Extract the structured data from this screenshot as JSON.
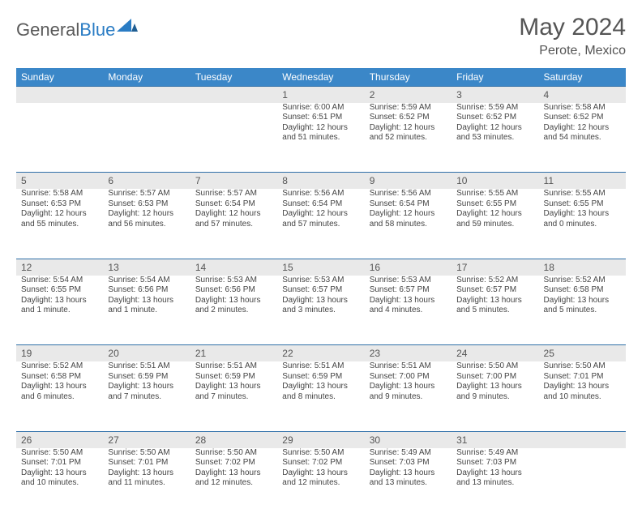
{
  "brand": {
    "word1": "General",
    "word2": "Blue"
  },
  "title": {
    "month": "May 2024",
    "location": "Perote, Mexico"
  },
  "colors": {
    "header_bg": "#3b87c8",
    "header_text": "#ffffff",
    "rule": "#2f6fa8",
    "daynum_bg": "#e9e9e9",
    "body_text": "#444444",
    "title_text": "#555555",
    "logo_gray": "#5a5a5a",
    "logo_blue": "#2a7cc4"
  },
  "weekdays": [
    "Sunday",
    "Monday",
    "Tuesday",
    "Wednesday",
    "Thursday",
    "Friday",
    "Saturday"
  ],
  "weeks": [
    [
      null,
      null,
      null,
      {
        "n": "1",
        "sr": "Sunrise: 6:00 AM",
        "ss": "Sunset: 6:51 PM",
        "d1": "Daylight: 12 hours",
        "d2": "and 51 minutes."
      },
      {
        "n": "2",
        "sr": "Sunrise: 5:59 AM",
        "ss": "Sunset: 6:52 PM",
        "d1": "Daylight: 12 hours",
        "d2": "and 52 minutes."
      },
      {
        "n": "3",
        "sr": "Sunrise: 5:59 AM",
        "ss": "Sunset: 6:52 PM",
        "d1": "Daylight: 12 hours",
        "d2": "and 53 minutes."
      },
      {
        "n": "4",
        "sr": "Sunrise: 5:58 AM",
        "ss": "Sunset: 6:52 PM",
        "d1": "Daylight: 12 hours",
        "d2": "and 54 minutes."
      }
    ],
    [
      {
        "n": "5",
        "sr": "Sunrise: 5:58 AM",
        "ss": "Sunset: 6:53 PM",
        "d1": "Daylight: 12 hours",
        "d2": "and 55 minutes."
      },
      {
        "n": "6",
        "sr": "Sunrise: 5:57 AM",
        "ss": "Sunset: 6:53 PM",
        "d1": "Daylight: 12 hours",
        "d2": "and 56 minutes."
      },
      {
        "n": "7",
        "sr": "Sunrise: 5:57 AM",
        "ss": "Sunset: 6:54 PM",
        "d1": "Daylight: 12 hours",
        "d2": "and 57 minutes."
      },
      {
        "n": "8",
        "sr": "Sunrise: 5:56 AM",
        "ss": "Sunset: 6:54 PM",
        "d1": "Daylight: 12 hours",
        "d2": "and 57 minutes."
      },
      {
        "n": "9",
        "sr": "Sunrise: 5:56 AM",
        "ss": "Sunset: 6:54 PM",
        "d1": "Daylight: 12 hours",
        "d2": "and 58 minutes."
      },
      {
        "n": "10",
        "sr": "Sunrise: 5:55 AM",
        "ss": "Sunset: 6:55 PM",
        "d1": "Daylight: 12 hours",
        "d2": "and 59 minutes."
      },
      {
        "n": "11",
        "sr": "Sunrise: 5:55 AM",
        "ss": "Sunset: 6:55 PM",
        "d1": "Daylight: 13 hours",
        "d2": "and 0 minutes."
      }
    ],
    [
      {
        "n": "12",
        "sr": "Sunrise: 5:54 AM",
        "ss": "Sunset: 6:55 PM",
        "d1": "Daylight: 13 hours",
        "d2": "and 1 minute."
      },
      {
        "n": "13",
        "sr": "Sunrise: 5:54 AM",
        "ss": "Sunset: 6:56 PM",
        "d1": "Daylight: 13 hours",
        "d2": "and 1 minute."
      },
      {
        "n": "14",
        "sr": "Sunrise: 5:53 AM",
        "ss": "Sunset: 6:56 PM",
        "d1": "Daylight: 13 hours",
        "d2": "and 2 minutes."
      },
      {
        "n": "15",
        "sr": "Sunrise: 5:53 AM",
        "ss": "Sunset: 6:57 PM",
        "d1": "Daylight: 13 hours",
        "d2": "and 3 minutes."
      },
      {
        "n": "16",
        "sr": "Sunrise: 5:53 AM",
        "ss": "Sunset: 6:57 PM",
        "d1": "Daylight: 13 hours",
        "d2": "and 4 minutes."
      },
      {
        "n": "17",
        "sr": "Sunrise: 5:52 AM",
        "ss": "Sunset: 6:57 PM",
        "d1": "Daylight: 13 hours",
        "d2": "and 5 minutes."
      },
      {
        "n": "18",
        "sr": "Sunrise: 5:52 AM",
        "ss": "Sunset: 6:58 PM",
        "d1": "Daylight: 13 hours",
        "d2": "and 5 minutes."
      }
    ],
    [
      {
        "n": "19",
        "sr": "Sunrise: 5:52 AM",
        "ss": "Sunset: 6:58 PM",
        "d1": "Daylight: 13 hours",
        "d2": "and 6 minutes."
      },
      {
        "n": "20",
        "sr": "Sunrise: 5:51 AM",
        "ss": "Sunset: 6:59 PM",
        "d1": "Daylight: 13 hours",
        "d2": "and 7 minutes."
      },
      {
        "n": "21",
        "sr": "Sunrise: 5:51 AM",
        "ss": "Sunset: 6:59 PM",
        "d1": "Daylight: 13 hours",
        "d2": "and 7 minutes."
      },
      {
        "n": "22",
        "sr": "Sunrise: 5:51 AM",
        "ss": "Sunset: 6:59 PM",
        "d1": "Daylight: 13 hours",
        "d2": "and 8 minutes."
      },
      {
        "n": "23",
        "sr": "Sunrise: 5:51 AM",
        "ss": "Sunset: 7:00 PM",
        "d1": "Daylight: 13 hours",
        "d2": "and 9 minutes."
      },
      {
        "n": "24",
        "sr": "Sunrise: 5:50 AM",
        "ss": "Sunset: 7:00 PM",
        "d1": "Daylight: 13 hours",
        "d2": "and 9 minutes."
      },
      {
        "n": "25",
        "sr": "Sunrise: 5:50 AM",
        "ss": "Sunset: 7:01 PM",
        "d1": "Daylight: 13 hours",
        "d2": "and 10 minutes."
      }
    ],
    [
      {
        "n": "26",
        "sr": "Sunrise: 5:50 AM",
        "ss": "Sunset: 7:01 PM",
        "d1": "Daylight: 13 hours",
        "d2": "and 10 minutes."
      },
      {
        "n": "27",
        "sr": "Sunrise: 5:50 AM",
        "ss": "Sunset: 7:01 PM",
        "d1": "Daylight: 13 hours",
        "d2": "and 11 minutes."
      },
      {
        "n": "28",
        "sr": "Sunrise: 5:50 AM",
        "ss": "Sunset: 7:02 PM",
        "d1": "Daylight: 13 hours",
        "d2": "and 12 minutes."
      },
      {
        "n": "29",
        "sr": "Sunrise: 5:50 AM",
        "ss": "Sunset: 7:02 PM",
        "d1": "Daylight: 13 hours",
        "d2": "and 12 minutes."
      },
      {
        "n": "30",
        "sr": "Sunrise: 5:49 AM",
        "ss": "Sunset: 7:03 PM",
        "d1": "Daylight: 13 hours",
        "d2": "and 13 minutes."
      },
      {
        "n": "31",
        "sr": "Sunrise: 5:49 AM",
        "ss": "Sunset: 7:03 PM",
        "d1": "Daylight: 13 hours",
        "d2": "and 13 minutes."
      },
      null
    ]
  ]
}
